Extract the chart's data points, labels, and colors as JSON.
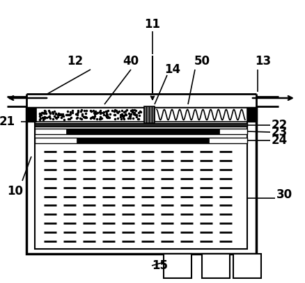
{
  "bg_color": "#ffffff",
  "line_color": "#000000",
  "label_fontsize": 12,
  "fig_width": 4.38,
  "fig_height": 4.07
}
